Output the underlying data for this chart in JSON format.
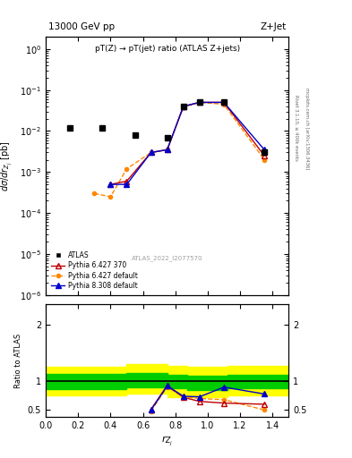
{
  "title_top": "13000 GeV pp",
  "title_right": "Z+Jet",
  "main_title": "pT(Z) → pT(jet) ratio (ATLAS Z+jets)",
  "watermark": "ATLAS_2022_I2077570",
  "ylabel_main": "dσ/dr$_{Z_j}$ [pb]",
  "ylabel_ratio": "Ratio to ATLAS",
  "right_label_top": "Rivet 3.1.10, ≥ 400k events",
  "right_label_bottom": "mcplots.cern.ch [arXiv:1306.3436]",
  "xlim": [
    0,
    1.5
  ],
  "ylim_main": [
    1e-06,
    2.0
  ],
  "atlas_x": [
    0.15,
    0.35,
    0.55,
    0.75,
    0.85,
    0.95,
    1.1,
    1.35
  ],
  "atlas_y": [
    0.012,
    0.012,
    0.008,
    0.007,
    0.04,
    0.05,
    0.05,
    0.003
  ],
  "pythia6_370_x": [
    0.4,
    0.5,
    0.65,
    0.75,
    0.85,
    0.95,
    1.1,
    1.35
  ],
  "pythia6_370_y": [
    0.0005,
    0.0006,
    0.003,
    0.0035,
    0.04,
    0.05,
    0.05,
    0.0025
  ],
  "pythia6_default_x": [
    0.3,
    0.4,
    0.5,
    0.65,
    0.75,
    0.85,
    0.95,
    1.1,
    1.35
  ],
  "pythia6_default_y": [
    0.0003,
    0.00025,
    0.0012,
    0.003,
    0.0035,
    0.038,
    0.05,
    0.045,
    0.002
  ],
  "pythia8_x": [
    0.4,
    0.5,
    0.65,
    0.75,
    0.85,
    0.95,
    1.1,
    1.35
  ],
  "pythia8_y": [
    0.0005,
    0.0005,
    0.003,
    0.0035,
    0.04,
    0.05,
    0.05,
    0.0035
  ],
  "ratio_py6_370_x": [
    0.65,
    0.75,
    0.85,
    0.95,
    1.1,
    1.35
  ],
  "ratio_py6_370_y": [
    0.51,
    0.93,
    0.72,
    0.65,
    0.62,
    0.6
  ],
  "ratio_py6_def_x": [
    0.65,
    0.75,
    0.85,
    0.95,
    1.1,
    1.35
  ],
  "ratio_py6_def_y": [
    0.48,
    0.9,
    0.73,
    0.7,
    0.68,
    0.5
  ],
  "ratio_py8_x": [
    0.65,
    0.75,
    0.85,
    0.95,
    1.1,
    1.35
  ],
  "ratio_py8_y": [
    0.5,
    0.92,
    0.74,
    0.73,
    0.9,
    0.78
  ],
  "band_edges": [
    0.0,
    0.5,
    0.75,
    0.875,
    1.125,
    1.5
  ],
  "green_band_lo": [
    0.87,
    0.9,
    0.88,
    0.85,
    0.88
  ],
  "green_band_hi": [
    1.13,
    1.15,
    1.12,
    1.1,
    1.12
  ],
  "yellow_band_lo": [
    0.75,
    0.78,
    0.72,
    0.72,
    0.75
  ],
  "yellow_band_hi": [
    1.25,
    1.3,
    1.28,
    1.25,
    1.28
  ],
  "color_atlas": "#000000",
  "color_py6_370": "#c00000",
  "color_py6_def": "#ff8800",
  "color_py8": "#0000cc",
  "color_green": "#00cc00",
  "color_yellow": "#ffff00"
}
